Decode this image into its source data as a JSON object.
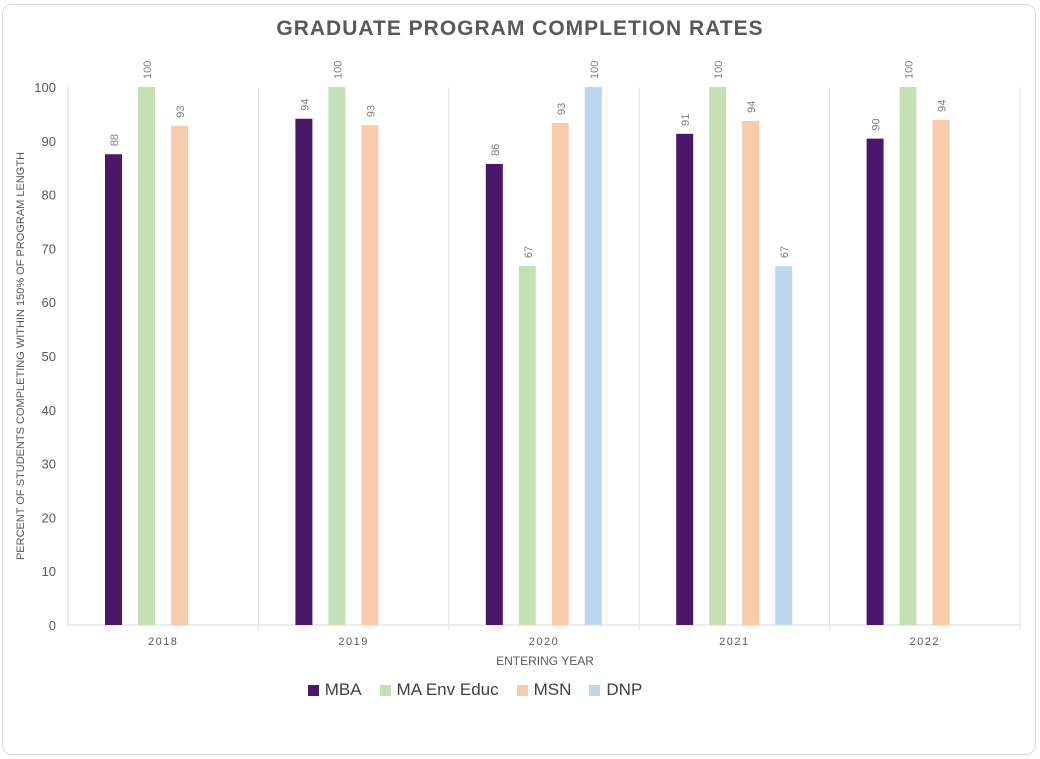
{
  "chart_data": {
    "type": "bar",
    "title": "GRADUATE PROGRAM COMPLETION RATES",
    "xlabel": "ENTERING YEAR",
    "ylabel": "PERCENT OF  STUDENTS COMPLETING WITHIN 150% OF PROGRAM LENGTH",
    "ylim": [
      0,
      100
    ],
    "yticks": [
      0,
      10,
      20,
      30,
      40,
      50,
      60,
      70,
      80,
      90,
      100
    ],
    "grid": false,
    "legend": "bottom",
    "categories": [
      "2018",
      "2019",
      "2020",
      "2021",
      "2022"
    ],
    "series": [
      {
        "name": "MBA",
        "color": "#4b1768",
        "values": [
          87.5,
          94.1,
          85.7,
          91.3,
          90.4
        ],
        "labels": [
          "88",
          "94",
          "86",
          "91",
          "90"
        ]
      },
      {
        "name": "MA Env Educ",
        "color": "#c5e0b4",
        "values": [
          100,
          100,
          66.7,
          100,
          100
        ],
        "labels": [
          "100",
          "100",
          "67",
          "100",
          "100"
        ]
      },
      {
        "name": "MSN",
        "color": "#f8cbad",
        "values": [
          92.8,
          92.9,
          93.3,
          93.7,
          93.9
        ],
        "labels": [
          "93",
          "93",
          "93",
          "94",
          "94"
        ]
      },
      {
        "name": "DNP",
        "color": "#bdd7ee",
        "values": [
          null,
          null,
          100,
          66.7,
          null
        ],
        "labels": [
          "",
          "",
          "100",
          "67",
          ""
        ]
      }
    ]
  }
}
